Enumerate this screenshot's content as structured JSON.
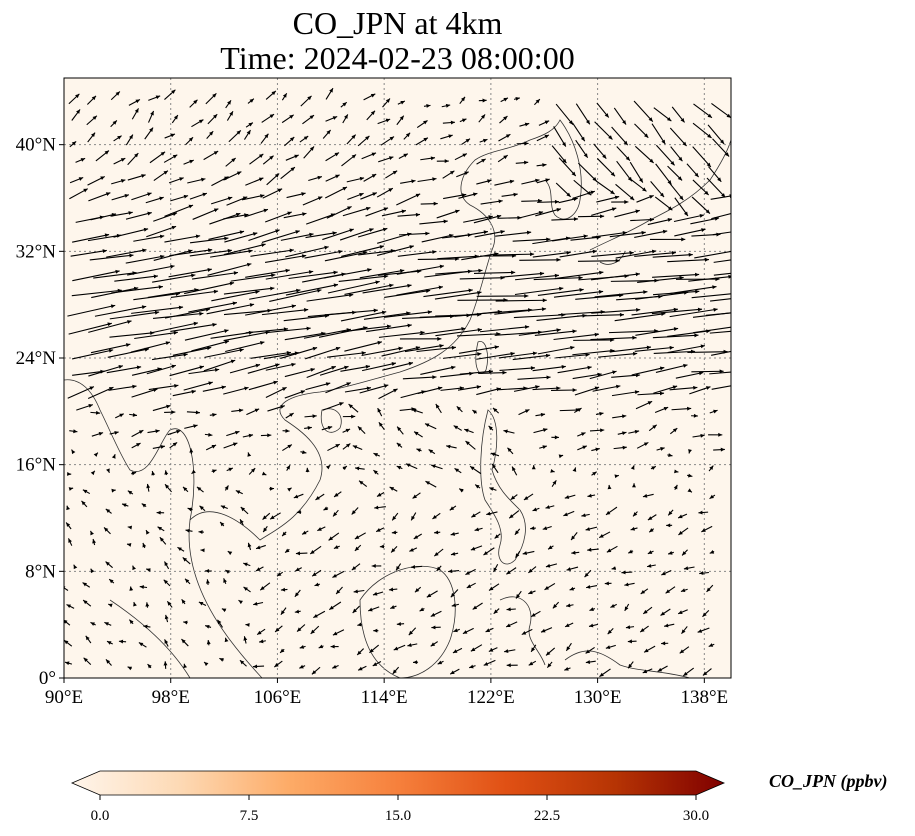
{
  "title": {
    "line1": "CO_JPN at 4km",
    "line2": "Time: 2024-02-23 08:00:00"
  },
  "map": {
    "lon_range": [
      90,
      140
    ],
    "lat_range": [
      0,
      45
    ],
    "background_color": "#fef6ec",
    "gridlines": true,
    "lat_ticks": [
      {
        "value": 0,
        "label": "0°"
      },
      {
        "value": 8,
        "label": "8°N"
      },
      {
        "value": 16,
        "label": "16°N"
      },
      {
        "value": 24,
        "label": "24°N"
      },
      {
        "value": 32,
        "label": "32°N"
      },
      {
        "value": 40,
        "label": "40°N"
      }
    ],
    "lon_ticks": [
      {
        "value": 90,
        "label": "90°E"
      },
      {
        "value": 98,
        "label": "98°E"
      },
      {
        "value": 106,
        "label": "106°E"
      },
      {
        "value": 114,
        "label": "114°E"
      },
      {
        "value": 122,
        "label": "122°E"
      },
      {
        "value": 130,
        "label": "130°E"
      },
      {
        "value": 138,
        "label": "138°E"
      }
    ]
  },
  "colorbar": {
    "label": "CO_JPN (ppbv)",
    "range": [
      0,
      30
    ],
    "extend": "both",
    "ticks": [
      "0.0",
      "7.5",
      "15.0",
      "22.5",
      "30.0"
    ],
    "colors": [
      "#fff5eb",
      "#fdd9b4",
      "#fdab67",
      "#f6803c",
      "#e05014",
      "#b63404",
      "#7f0000"
    ]
  }
}
